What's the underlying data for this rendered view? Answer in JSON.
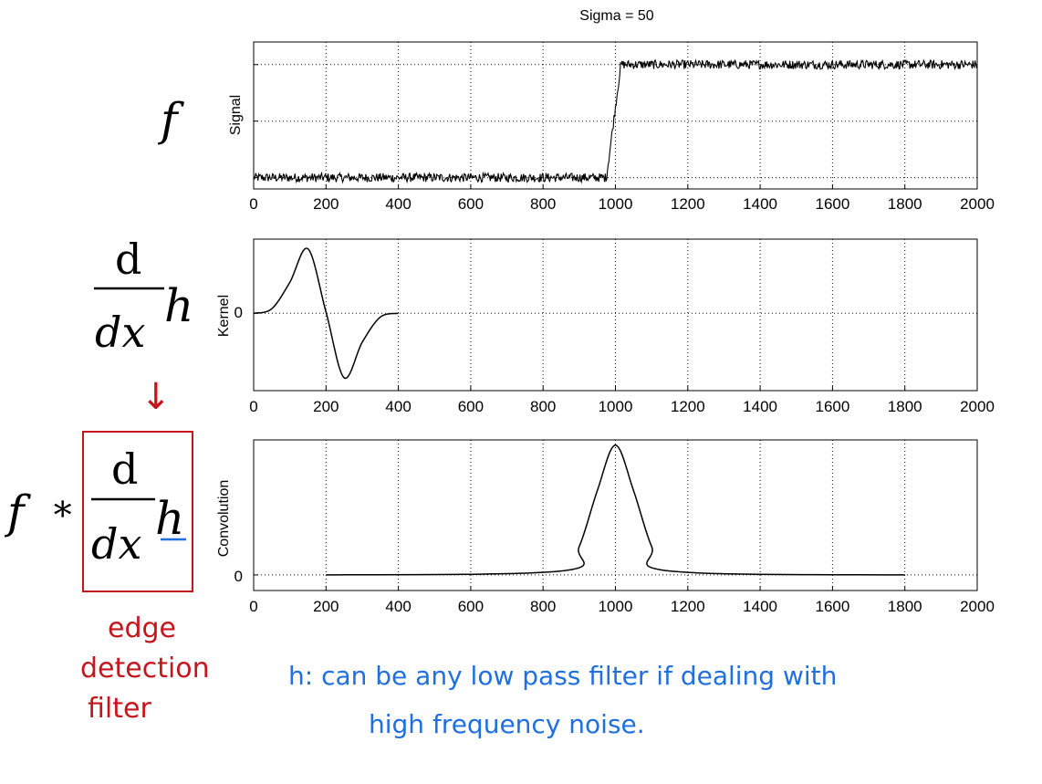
{
  "figure": {
    "title": "Sigma = 50"
  },
  "math": {
    "f1": "f",
    "d_num": "d",
    "d_den": "dx",
    "h": "h",
    "f3": "f",
    "star": "∗",
    "arrow": "↓"
  },
  "annotations": {
    "red_line1": "edge",
    "red_line2": "detection",
    "red_line3": "filter",
    "blue_line1": "h:  can be any low pass filter if dealing with",
    "blue_line2": "high frequency noise."
  },
  "colors": {
    "red": "#c4161c",
    "blue": "#1f6fe0",
    "line": "#000000"
  },
  "chart_data": [
    {
      "type": "line",
      "ylabel": "Signal",
      "xlabel": "",
      "xlim": [
        0,
        2000
      ],
      "xticks": [
        0,
        200,
        400,
        600,
        800,
        1000,
        1200,
        1400,
        1600,
        1800,
        2000
      ],
      "yticks_labels": [],
      "grid": true,
      "description_values": {
        "low_level": 0,
        "high_level": 1,
        "step_start_x": 975,
        "step_end_x": 1015,
        "noise": "high-frequency"
      }
    },
    {
      "type": "line",
      "ylabel": "Kernel",
      "xlabel": "",
      "xlim": [
        0,
        2000
      ],
      "xticks": [
        0,
        200,
        400,
        600,
        800,
        1000,
        1200,
        1400,
        1600,
        1800,
        2000
      ],
      "ytick_label": "0",
      "grid": true,
      "x": [
        0,
        50,
        100,
        150,
        200,
        250,
        300,
        350,
        400
      ],
      "y": [
        0,
        0.07,
        0.48,
        1.0,
        0.02,
        -1.0,
        -0.45,
        -0.06,
        0
      ]
    },
    {
      "type": "line",
      "ylabel": "Convolution",
      "xlabel": "",
      "xlim": [
        0,
        2000
      ],
      "xticks": [
        0,
        200,
        400,
        600,
        800,
        1000,
        1200,
        1400,
        1600,
        1800,
        2000
      ],
      "ytick_label": "0",
      "grid": true,
      "x": [
        200,
        850,
        900,
        950,
        1000,
        1050,
        1100,
        1150,
        1800
      ],
      "y": [
        0,
        0.03,
        0.22,
        0.65,
        1.0,
        0.65,
        0.22,
        0.03,
        0
      ]
    }
  ]
}
